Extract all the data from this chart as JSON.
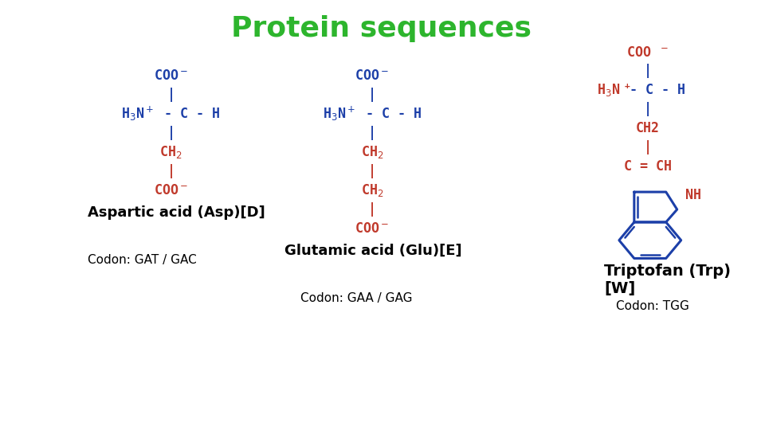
{
  "title": "Protein sequences",
  "title_color": "#2db52d",
  "title_fontsize": 26,
  "bg_color": "#ffffff",
  "blue": "#1c3fa8",
  "red": "#c0392b",
  "black": "#000000",
  "asp_label": "Aspartic acid (Asp)[D]",
  "asp_codon": "Codon: GAT / GAC",
  "glu_label": "Glutamic acid (Glu)[E]",
  "glu_codon": "Codon: GAA / GAG",
  "trp_label1": "Triptofan (Trp)",
  "trp_label2": "[W]",
  "trp_codon": "Codon: TGG"
}
